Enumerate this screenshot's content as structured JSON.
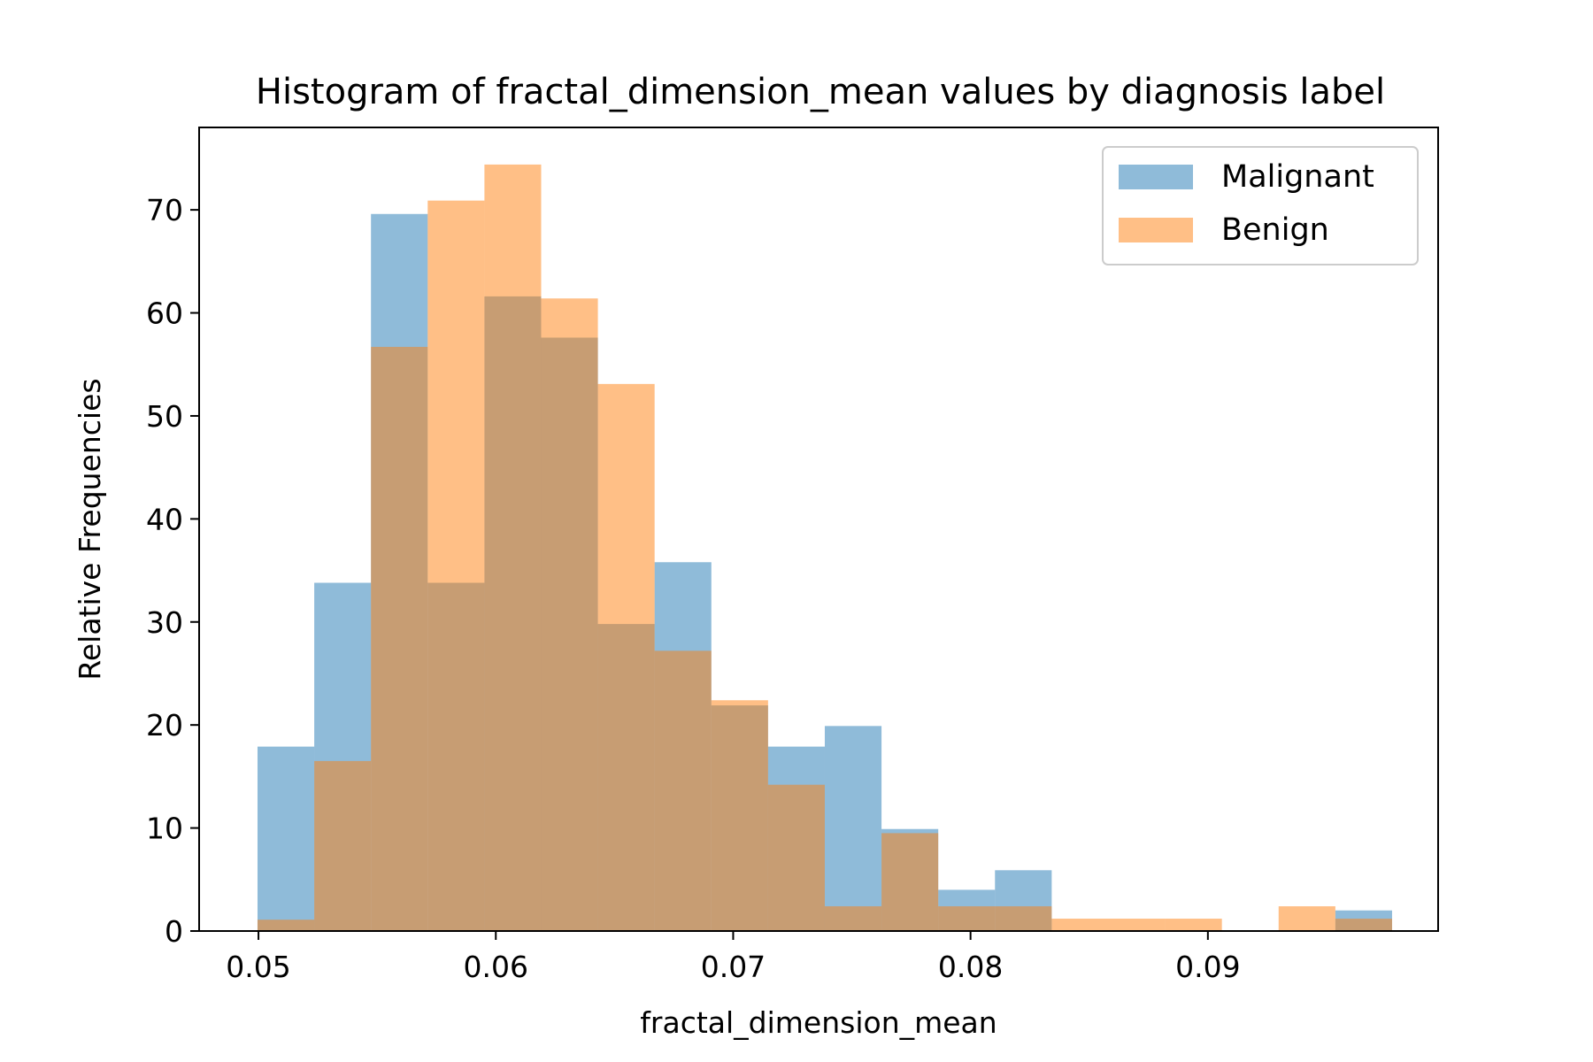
{
  "chart_data": {
    "type": "bar",
    "subtype": "overlapping-histogram",
    "title": "Histogram of fractal_dimension_mean values by diagnosis label",
    "xlabel": "fractal_dimension_mean",
    "ylabel": "Relative Frequencies",
    "xlim": [
      0.0475,
      0.0997
    ],
    "ylim": [
      0,
      78
    ],
    "xticks": [
      0.05,
      0.06,
      0.07,
      0.08,
      0.09
    ],
    "xtick_labels": [
      "0.05",
      "0.06",
      "0.07",
      "0.08",
      "0.09"
    ],
    "yticks": [
      0,
      10,
      20,
      30,
      40,
      50,
      60,
      70
    ],
    "ytick_labels": [
      "0",
      "10",
      "20",
      "30",
      "40",
      "50",
      "60",
      "70"
    ],
    "grid": false,
    "legend_position": "top-right",
    "alpha": 0.5,
    "series": [
      {
        "name": "Malignant",
        "color": "#1f77b4",
        "bin_edges": [
          0.04996,
          0.05235,
          0.05474,
          0.05713,
          0.05952,
          0.06191,
          0.0643,
          0.06669,
          0.06908,
          0.07147,
          0.07386,
          0.07625,
          0.07864,
          0.08103,
          0.08342,
          0.08581,
          0.0882,
          0.09059,
          0.09298,
          0.09537,
          0.09776
        ],
        "values": [
          17.9,
          33.8,
          69.6,
          33.8,
          61.6,
          57.6,
          29.8,
          35.8,
          21.9,
          17.9,
          19.9,
          9.9,
          4.0,
          5.9,
          0,
          0,
          0,
          0,
          0,
          2.0
        ]
      },
      {
        "name": "Benign",
        "color": "#ff7f0e",
        "bin_edges": [
          0.04996,
          0.05235,
          0.05474,
          0.05713,
          0.05952,
          0.06191,
          0.0643,
          0.06669,
          0.06908,
          0.07147,
          0.07386,
          0.07625,
          0.07864,
          0.08103,
          0.08342,
          0.08581,
          0.0882,
          0.09059,
          0.09298,
          0.09537,
          0.09776
        ],
        "values": [
          1.1,
          16.5,
          56.7,
          70.9,
          74.4,
          61.4,
          53.1,
          27.2,
          22.4,
          14.2,
          2.4,
          9.5,
          2.4,
          2.4,
          1.2,
          1.2,
          1.2,
          0,
          2.4,
          1.2
        ]
      }
    ]
  }
}
